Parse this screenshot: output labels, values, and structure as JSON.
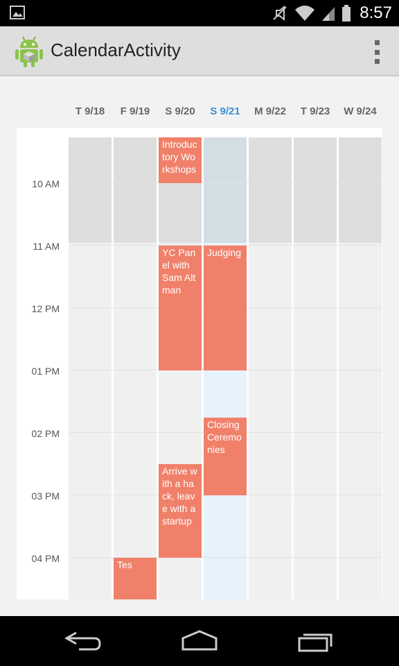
{
  "status_bar": {
    "time": "8:57",
    "icons": [
      "image-icon",
      "mute-icon",
      "wifi-icon",
      "signal-icon",
      "battery-icon"
    ]
  },
  "action_bar": {
    "title": "CalendarActivity",
    "icon": "android-robot-icon",
    "overflow_icon": "overflow-menu-icon"
  },
  "calendar": {
    "days": [
      {
        "label": "T 9/18",
        "today": false
      },
      {
        "label": "F 9/19",
        "today": false
      },
      {
        "label": "S 9/20",
        "today": false
      },
      {
        "label": "S 9/21",
        "today": true
      },
      {
        "label": "M 9/22",
        "today": false
      },
      {
        "label": "T 9/23",
        "today": false
      },
      {
        "label": "W 9/24",
        "today": false
      }
    ],
    "times": [
      "10 AM",
      "11 AM",
      "12 PM",
      "01 PM",
      "02 PM",
      "03 PM",
      "04 PM"
    ],
    "events": [
      {
        "title": "Introductory Workshops",
        "day": 2
      },
      {
        "title": "YC Panel with Sam Altman",
        "day": 2
      },
      {
        "title": "Judging",
        "day": 3
      },
      {
        "title": "Closing Ceremonies",
        "day": 3
      },
      {
        "title": "Arrive with a hack, leave with a startup",
        "day": 2
      },
      {
        "title": "Tes",
        "day": 1
      }
    ],
    "colors": {
      "event": "#f0806a",
      "today_label": "#3a8fd8",
      "past": "#dedede",
      "today_past": "#d3dde4",
      "today_future": "#e8f2fa"
    }
  },
  "nav_bar": {
    "buttons": [
      "back-icon",
      "home-icon",
      "recents-icon"
    ]
  }
}
